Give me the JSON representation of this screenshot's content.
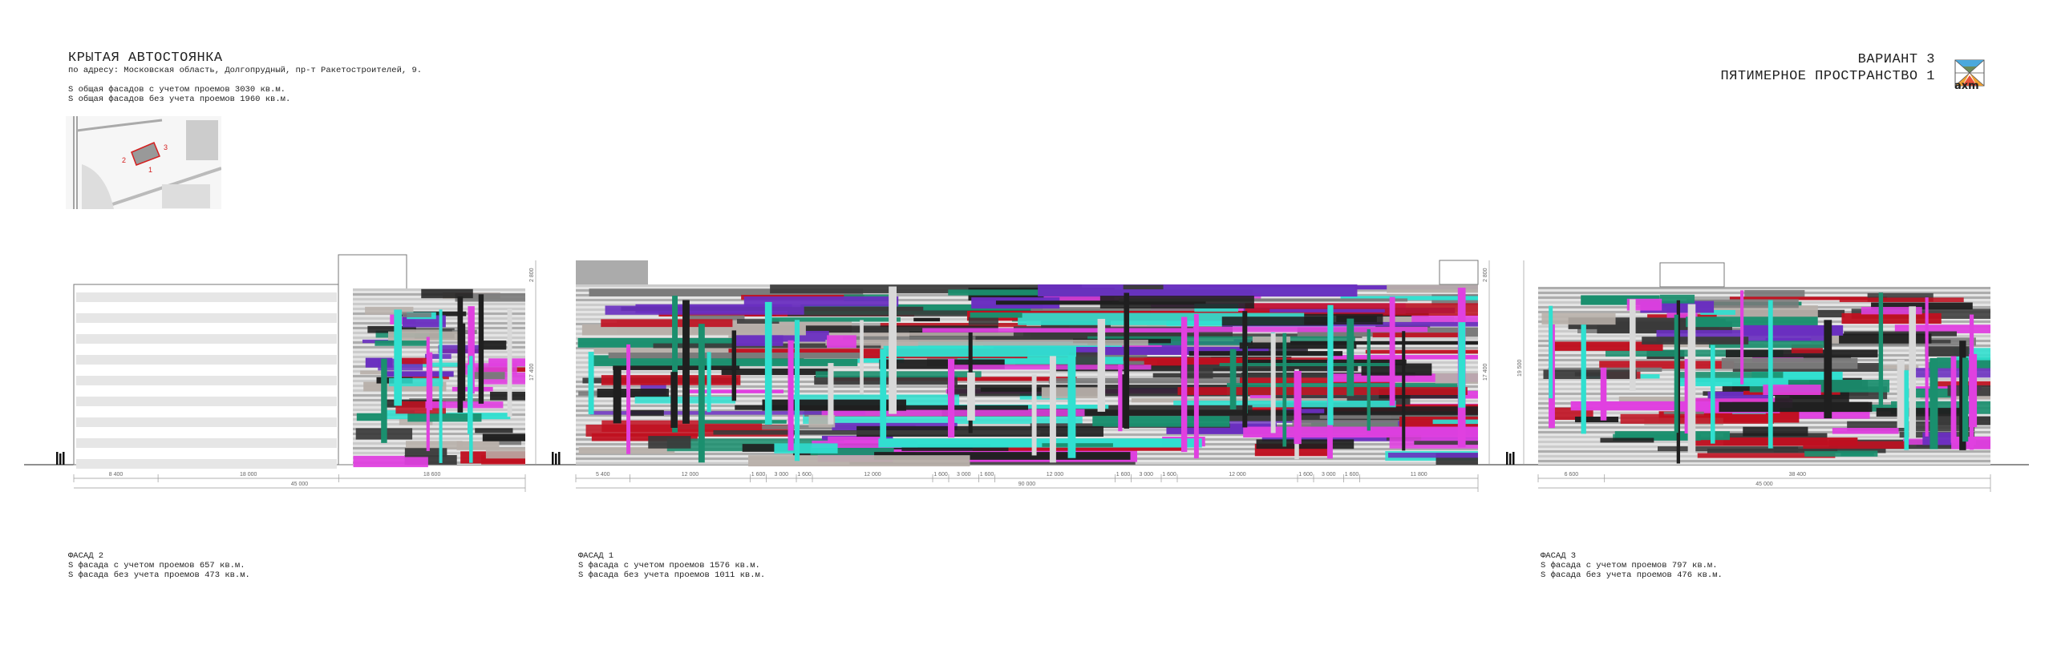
{
  "header": {
    "title": "КРЫТАЯ АВТОСТОЯНКА",
    "address": "по адресу: Московская область, Долгопрудный, пр-т Ракетостроителей, 9.",
    "area_with_openings": "S общая фасадов с учетом проемов 3030 кв.м.",
    "area_without_openings": "S общая фасадов без учета проемов 1960 кв.м."
  },
  "variant": {
    "line1": "ВАРИАНТ 3",
    "line2": "ПЯТИМЕРНОЕ ПРОСТРАНСТВО 1"
  },
  "logo": {
    "text": "axm",
    "colors": [
      "#4aa8dc",
      "#6b8a5a",
      "#f0a030",
      "#e8503a"
    ]
  },
  "site_map": {
    "labels": [
      "1",
      "2",
      "3"
    ],
    "highlight_color": "#d42020"
  },
  "facades": [
    {
      "name": "ФАСАД 2",
      "area_with": "S фасада с учетом проемов 657 кв.м.",
      "area_without": "S фасада без учета проемов 473 кв.м.",
      "dims": [
        "8 400",
        "18 000",
        "18 600"
      ],
      "total": "45 000",
      "heights": [
        "2 800",
        "17 400"
      ]
    },
    {
      "name": "ФАСАД 1",
      "area_with": "S фасада с учетом проемов 1576 кв.м.",
      "area_without": "S фасада без учета проемов 1011 кв.м.",
      "dims": [
        "5 400",
        "12 000",
        "1 600",
        "3 000",
        "1 600",
        "12 000",
        "1 600",
        "3 000",
        "1 600",
        "12 000",
        "1 600",
        "3 000",
        "1 600",
        "12 000",
        "1 600",
        "3 000",
        "1 600",
        "11 800"
      ],
      "total": "90 000",
      "heights": [
        "2 800",
        "17 400"
      ]
    },
    {
      "name": "ФАСАД 3",
      "area_with": "S фасада с учетом проемов 797 кв.м.",
      "area_without": "S фасада без учета проемов 476 кв.м.",
      "dims": [
        "6 600",
        "38 400"
      ],
      "total": "45 000",
      "heights": [
        "19 500"
      ]
    }
  ],
  "palette": [
    "#1f1f1f",
    "#3a3a3a",
    "#7a7a7a",
    "#b8b0aa",
    "#1a8f6e",
    "#6a2fc0",
    "#e040e0",
    "#c01020",
    "#30e0d0",
    "#d8d8d8"
  ]
}
